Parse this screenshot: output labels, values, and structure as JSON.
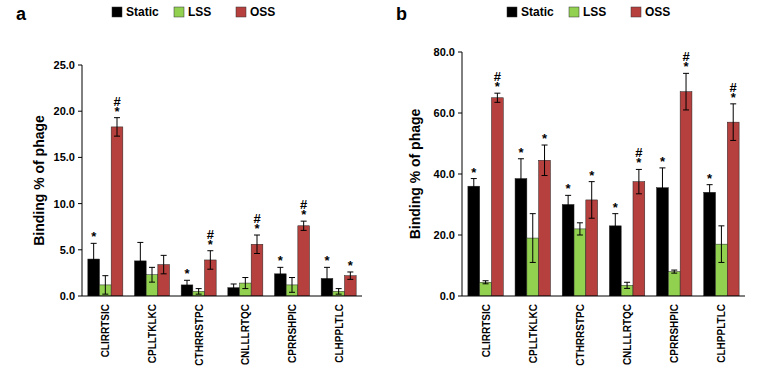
{
  "chart_data": [
    {
      "type": "bar",
      "title": "a",
      "y_label": "Binding % of phage",
      "legend": "top",
      "categories": [
        "CLIRRTSIC",
        "CPLLTKLKC",
        "CTHRRSTPC",
        "CNLLLRTQC",
        "CPRRSHPIC",
        "CLHPPLTLC"
      ],
      "series": [
        {
          "name": "Static",
          "color": "#000000",
          "values": [
            4.0,
            3.8,
            1.2,
            0.9,
            2.4,
            1.9
          ],
          "errors": [
            1.7,
            2.0,
            0.5,
            0.4,
            0.7,
            1.2
          ],
          "annotations": [
            "*",
            null,
            "*",
            null,
            "*",
            "*"
          ]
        },
        {
          "name": "LSS",
          "color": "#92d050",
          "values": [
            1.2,
            2.3,
            0.5,
            1.4,
            1.2,
            0.5
          ],
          "errors": [
            1.0,
            0.8,
            0.3,
            0.6,
            0.8,
            0.3
          ],
          "annotations": [
            null,
            null,
            null,
            null,
            null,
            null
          ]
        },
        {
          "name": "OSS",
          "color": "#b5403d",
          "values": [
            18.3,
            3.4,
            3.9,
            5.6,
            7.6,
            2.2
          ],
          "errors": [
            1.0,
            1.0,
            1.0,
            1.0,
            0.5,
            0.4
          ],
          "annotations": [
            "*#",
            null,
            "*#",
            "*#",
            "*#",
            "*"
          ]
        }
      ],
      "ylim": [
        0,
        25
      ],
      "yticks": [
        {
          "value": 0,
          "label": "0.0"
        },
        {
          "value": 5,
          "label": "5.0"
        },
        {
          "value": 10,
          "label": "10.0"
        },
        {
          "value": 15,
          "label": "15.0"
        },
        {
          "value": 20,
          "label": "20.0"
        },
        {
          "value": 25,
          "label": "25.0"
        }
      ],
      "grid": false
    },
    {
      "type": "bar",
      "title": "b",
      "y_label": "Binding % of phage",
      "legend": "top",
      "categories": [
        "CLIRRTSIC",
        "CPLLTKLKC",
        "CTHRRSTPC",
        "CNLLLRTQC",
        "CPRRSHPIC",
        "CLHPPLTLC"
      ],
      "series": [
        {
          "name": "Static",
          "color": "#000000",
          "values": [
            36,
            38.5,
            30,
            23,
            35.5,
            34
          ],
          "errors": [
            2.5,
            6.5,
            3,
            4,
            6.5,
            2.5
          ],
          "annotations": [
            "*",
            "*",
            "*",
            "*",
            "*",
            "*"
          ]
        },
        {
          "name": "LSS",
          "color": "#92d050",
          "values": [
            4.5,
            19,
            22,
            3.5,
            8,
            17
          ],
          "errors": [
            0.5,
            8,
            2,
            1,
            0.5,
            6
          ],
          "annotations": [
            null,
            null,
            null,
            null,
            null,
            null
          ]
        },
        {
          "name": "OSS",
          "color": "#b5403d",
          "values": [
            65,
            44.5,
            31.5,
            37.5,
            67,
            57
          ],
          "errors": [
            1.5,
            5,
            6,
            4,
            6,
            6
          ],
          "annotations": [
            "*#",
            "*",
            "*",
            "*#",
            "*#",
            "*#"
          ]
        }
      ],
      "ylim": [
        0,
        80
      ],
      "yticks": [
        {
          "value": 0,
          "label": "0.0"
        },
        {
          "value": 20,
          "label": "20.0"
        },
        {
          "value": 40,
          "label": "40.0"
        },
        {
          "value": 60,
          "label": "60.0"
        },
        {
          "value": 80,
          "label": "80.0"
        }
      ],
      "grid": false
    }
  ]
}
